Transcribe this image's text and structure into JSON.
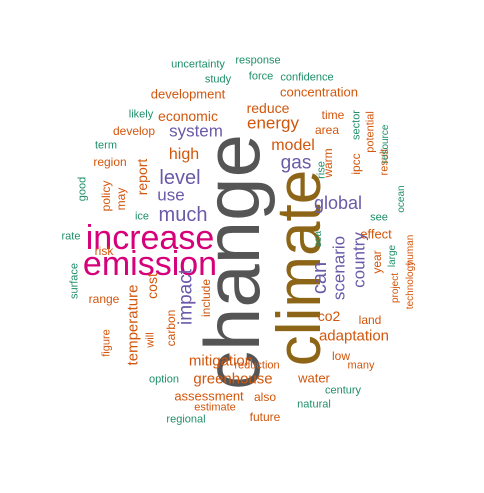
{
  "colors": {
    "gray": "#555555",
    "brown": "#8d6517",
    "magenta": "#d6007a",
    "purple": "#6a5aa8",
    "orange": "#d2560c",
    "teal": "#1f8f6a"
  },
  "words": [
    {
      "text": "change",
      "color": "gray"
    },
    {
      "text": "climate",
      "color": "brown"
    },
    {
      "text": "increase",
      "color": "magenta"
    },
    {
      "text": "emission",
      "color": "magenta"
    },
    {
      "text": "much",
      "color": "purple"
    },
    {
      "text": "level",
      "color": "purple"
    },
    {
      "text": "use",
      "color": "purple"
    },
    {
      "text": "global",
      "color": "purple"
    },
    {
      "text": "can",
      "color": "purple"
    },
    {
      "text": "gas",
      "color": "purple"
    },
    {
      "text": "impact",
      "color": "purple"
    },
    {
      "text": "scenario",
      "color": "purple"
    },
    {
      "text": "country",
      "color": "purple"
    },
    {
      "text": "system",
      "color": "purple"
    },
    {
      "text": "energy",
      "color": "orange"
    },
    {
      "text": "high",
      "color": "orange"
    },
    {
      "text": "model",
      "color": "orange"
    },
    {
      "text": "report",
      "color": "orange"
    },
    {
      "text": "cost",
      "color": "orange"
    },
    {
      "text": "mitigation",
      "color": "orange"
    },
    {
      "text": "greenhouse",
      "color": "orange"
    },
    {
      "text": "adaptation",
      "color": "orange"
    },
    {
      "text": "temperature",
      "color": "orange"
    },
    {
      "text": "economic",
      "color": "orange"
    },
    {
      "text": "reduce",
      "color": "orange"
    },
    {
      "text": "development",
      "color": "orange"
    },
    {
      "text": "concentration",
      "color": "orange"
    },
    {
      "text": "co2",
      "color": "orange"
    },
    {
      "text": "effect",
      "color": "orange"
    },
    {
      "text": "water",
      "color": "orange"
    },
    {
      "text": "assessment",
      "color": "orange"
    },
    {
      "text": "carbon",
      "color": "orange"
    },
    {
      "text": "include",
      "color": "orange"
    },
    {
      "text": "develop",
      "color": "orange"
    },
    {
      "text": "region",
      "color": "orange"
    },
    {
      "text": "policy",
      "color": "orange"
    },
    {
      "text": "may",
      "color": "orange"
    },
    {
      "text": "risk",
      "color": "orange"
    },
    {
      "text": "range",
      "color": "orange"
    },
    {
      "text": "year",
      "color": "orange"
    },
    {
      "text": "result",
      "color": "orange"
    },
    {
      "text": "ipcc",
      "color": "orange"
    },
    {
      "text": "warm",
      "color": "orange"
    },
    {
      "text": "time",
      "color": "orange"
    },
    {
      "text": "area",
      "color": "orange"
    },
    {
      "text": "land",
      "color": "orange"
    },
    {
      "text": "low",
      "color": "orange"
    },
    {
      "text": "estimate",
      "color": "orange"
    },
    {
      "text": "also",
      "color": "orange"
    },
    {
      "text": "future",
      "color": "orange"
    },
    {
      "text": "reduction",
      "color": "orange"
    },
    {
      "text": "will",
      "color": "orange"
    },
    {
      "text": "figure",
      "color": "orange"
    },
    {
      "text": "project",
      "color": "orange"
    },
    {
      "text": "potential",
      "color": "orange"
    },
    {
      "text": "technology",
      "color": "orange"
    },
    {
      "text": "human",
      "color": "orange"
    },
    {
      "text": "many",
      "color": "orange"
    },
    {
      "text": "uncertainty",
      "color": "teal"
    },
    {
      "text": "response",
      "color": "teal"
    },
    {
      "text": "study",
      "color": "teal"
    },
    {
      "text": "force",
      "color": "teal"
    },
    {
      "text": "confidence",
      "color": "teal"
    },
    {
      "text": "likely",
      "color": "teal"
    },
    {
      "text": "term",
      "color": "teal"
    },
    {
      "text": "good",
      "color": "teal"
    },
    {
      "text": "rate",
      "color": "teal"
    },
    {
      "text": "surface",
      "color": "teal"
    },
    {
      "text": "ice",
      "color": "teal"
    },
    {
      "text": "sea",
      "color": "teal"
    },
    {
      "text": "rise",
      "color": "teal"
    },
    {
      "text": "sector",
      "color": "teal"
    },
    {
      "text": "resource",
      "color": "teal"
    },
    {
      "text": "ocean",
      "color": "teal"
    },
    {
      "text": "see",
      "color": "teal"
    },
    {
      "text": "large",
      "color": "teal"
    },
    {
      "text": "option",
      "color": "teal"
    },
    {
      "text": "century",
      "color": "teal"
    },
    {
      "text": "natural",
      "color": "teal"
    },
    {
      "text": "regional",
      "color": "teal"
    }
  ]
}
